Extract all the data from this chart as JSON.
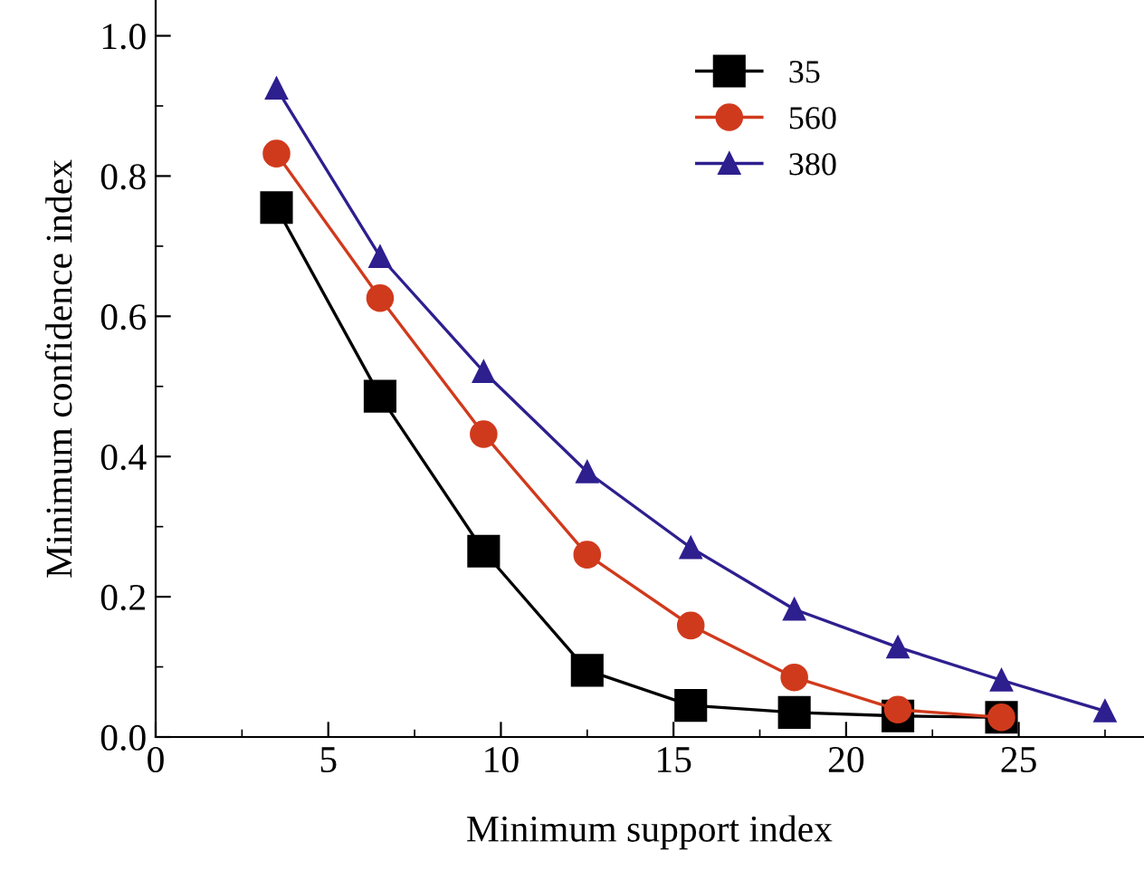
{
  "chart_data": {
    "type": "line",
    "xlabel": "Minimum support index",
    "ylabel": "Minimum confidence index",
    "x": [
      3.5,
      6.5,
      9.5,
      12.5,
      15.5,
      18.5,
      21.5,
      24.5,
      27.5
    ],
    "series": [
      {
        "name": "35",
        "color": "#000000",
        "marker": "square",
        "values": [
          0.755,
          0.486,
          0.265,
          0.095,
          0.045,
          0.035,
          0.03,
          0.028,
          null
        ]
      },
      {
        "name": "560",
        "color": "#d03a1c",
        "marker": "circle",
        "values": [
          0.832,
          0.626,
          0.432,
          0.26,
          0.159,
          0.085,
          0.039,
          0.028,
          null
        ]
      },
      {
        "name": "380",
        "color": "#2e1f8f",
        "marker": "triangle",
        "values": [
          0.925,
          0.685,
          0.521,
          0.378,
          0.27,
          0.182,
          0.128,
          0.081,
          0.037
        ]
      }
    ],
    "xlim": [
      0,
      28.6
    ],
    "ylim": [
      0,
      1.05
    ],
    "xticks": [
      0,
      5,
      10,
      15,
      20,
      25
    ],
    "yticks": [
      {
        "value": 0,
        "label": "0.0"
      },
      {
        "value": 0.2,
        "label": "0.2"
      },
      {
        "value": 0.4,
        "label": "0.4"
      },
      {
        "value": 0.6,
        "label": "0.6"
      },
      {
        "value": 0.8,
        "label": "0.8"
      },
      {
        "value": 1.0,
        "label": "1.0"
      }
    ],
    "grid": false,
    "legend": "top right",
    "line_style": "solid"
  }
}
